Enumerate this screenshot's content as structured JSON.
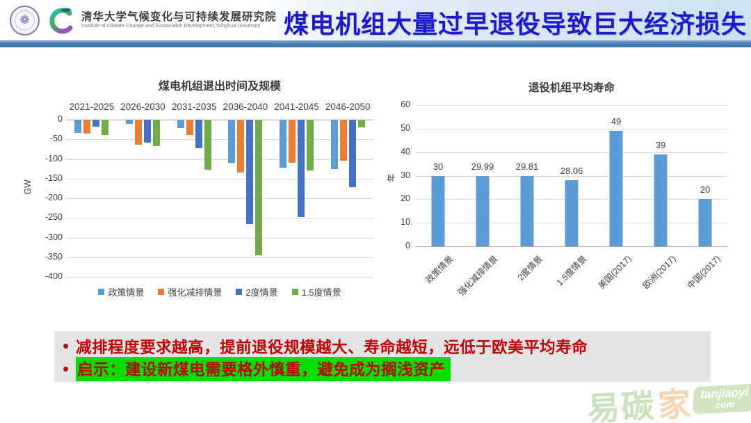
{
  "header": {
    "org_cn": "清华大学气候变化与可持续发展研究院",
    "org_en": "Institute of Climate Change and Sustainable Development,Tsinghua University",
    "title": "煤电机组大量过早退役导致巨大经济损失"
  },
  "theme": {
    "title_color": "#1b1bcd",
    "note_red": "#c00000",
    "highlight_green": "#00df00",
    "gridline": "#d9d9d9"
  },
  "chart_data": [
    {
      "type": "bar",
      "title": "煤电机组退出时间及规模",
      "ylabel": "GW",
      "ylim": [
        -400,
        0
      ],
      "yticks": [
        0,
        -50,
        -100,
        -150,
        -200,
        -250,
        -300,
        -350,
        -400
      ],
      "grid": true,
      "legend_position": "bottom",
      "categories": [
        "2021-2025",
        "2026-2030",
        "2031-2035",
        "2036-2040",
        "2041-2045",
        "2046-2050"
      ],
      "series": [
        {
          "name": "政策情景",
          "color": "#5B9BD5",
          "values": [
            -34,
            -11,
            -21,
            -109,
            -122,
            -126
          ]
        },
        {
          "name": "强化减排情景",
          "color": "#ED7D31",
          "values": [
            -36,
            -64,
            -39,
            -135,
            -109,
            -105
          ]
        },
        {
          "name": "2度情景",
          "color": "#4472C4",
          "values": [
            -18,
            -58,
            -73,
            -266,
            -247,
            -171
          ]
        },
        {
          "name": "1.5度情景",
          "color": "#70AD47",
          "values": [
            -39,
            -67,
            -128,
            -345,
            -130,
            -20
          ]
        }
      ]
    },
    {
      "type": "bar",
      "title": "退役机组平均寿命",
      "ylabel": "年",
      "ylim": [
        0,
        60
      ],
      "yticks": [
        60,
        50,
        40,
        30,
        20,
        10,
        0
      ],
      "grid": true,
      "bar_color": "#5B9BD5",
      "categories": [
        "政策情景",
        "强化减排情景",
        "2度情景",
        "1.5度情景",
        "美国(2017)",
        "欧洲(2017)",
        "中国(2017)"
      ],
      "values": [
        30,
        29.99,
        29.81,
        28.06,
        49,
        39,
        20
      ],
      "labels": [
        "30",
        "29.99",
        "29.81",
        "28.06",
        "49",
        "39",
        "20"
      ]
    }
  ],
  "notes": {
    "bullet_glyph": "•",
    "bullet1": "减排程度要求越高，提前退役规模越大、寿命越短，远低于欧美平均寿命",
    "bullet2": "启示：建设新煤电需要格外慎重，避免成为搁浅资产"
  },
  "watermark": {
    "text_green": "易碳",
    "text_peach": "家",
    "badge_top": "tanjiaoyi",
    "badge_bottom": ".com"
  }
}
